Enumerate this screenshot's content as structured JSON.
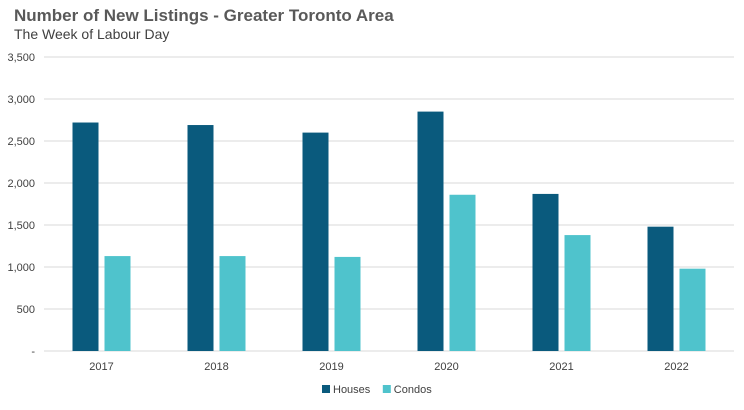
{
  "chart_data": {
    "type": "bar",
    "title": "Number of New Listings - Greater Toronto Area",
    "subtitle": "The Week of Labour Day",
    "categories": [
      "2017",
      "2018",
      "2019",
      "2020",
      "2021",
      "2022"
    ],
    "series": [
      {
        "name": "Houses",
        "color": "#0a5a7d",
        "values": [
          2720,
          2690,
          2600,
          2850,
          1870,
          1480
        ]
      },
      {
        "name": "Condos",
        "color": "#4fc3cc",
        "values": [
          1130,
          1130,
          1120,
          1860,
          1380,
          980
        ]
      }
    ],
    "yticks": [
      0,
      500,
      1000,
      1500,
      2000,
      2500,
      3000,
      3500
    ],
    "ytick_labels": [
      "-",
      "500",
      "1,000",
      "1,500",
      "2,000",
      "2,500",
      "3,000",
      "3,500"
    ],
    "ylim": [
      0,
      3500
    ],
    "xlabel": "",
    "ylabel": "",
    "grid": true,
    "legend_position": "bottom"
  }
}
